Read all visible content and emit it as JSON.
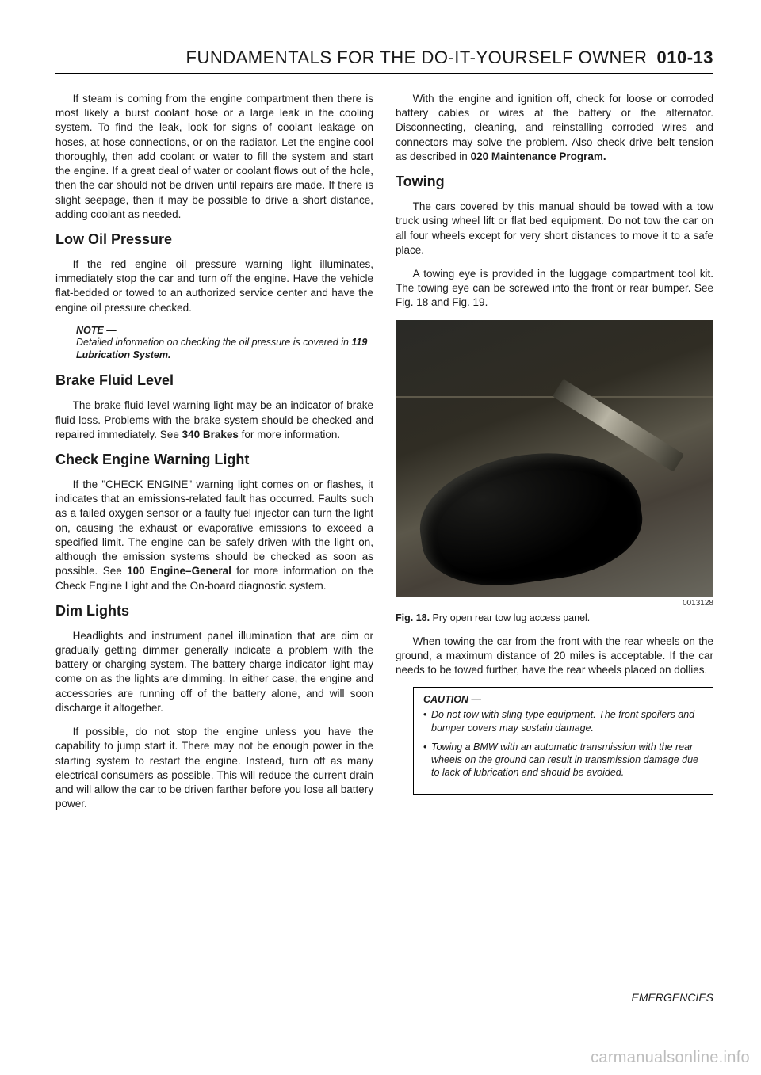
{
  "header": {
    "title_part1": "FUNDAMENTALS FOR THE ",
    "title_part2": "DO-IT-YOURSELF OWNER",
    "pageno": "010-13"
  },
  "left": {
    "p1": "If steam is coming from the engine compartment then there is most likely a burst coolant hose or a large leak in the cooling system. To find the leak, look for signs of coolant leakage on hoses, at hose connections, or on the radiator. Let the engine cool thoroughly, then add coolant or water to fill the system and start the engine. If a great deal of water or coolant flows out of the hole, then the car should not be driven until repairs are made. If there is slight seepage, then it may be possible to drive a short distance, adding coolant as needed.",
    "h_low_oil": "Low Oil Pressure",
    "p2": "If the red engine oil pressure warning light illuminates, immediately stop the car and turn off the engine. Have the vehicle flat-bedded or towed to an authorized service center and have the engine oil pressure checked.",
    "note_label": "NOTE —",
    "note_body_a": "Detailed information on checking the oil pressure is covered in ",
    "note_body_b": "119 Lubrication System.",
    "h_brake": "Brake Fluid Level",
    "p3a": "The brake fluid level warning light may be an indicator of brake fluid loss. Problems with the brake system should be checked and repaired immediately. See ",
    "p3b": "340 Brakes",
    "p3c": " for more information.",
    "h_check": "Check Engine Warning Light",
    "p4a": "If the \"CHECK ENGINE\" warning light comes on or flashes, it indicates that an emissions-related fault has occurred. Faults such as a failed oxygen sensor or a faulty fuel injector can turn the light on, causing the exhaust or evaporative emissions to exceed a specified limit. The engine can be safely driven with the light on, although the emission systems should be checked as soon as possible. See ",
    "p4b": "100 Engine–General",
    "p4c": " for more information on the Check Engine Light and the On-board diagnostic system.",
    "h_dim": "Dim Lights",
    "p5": "Headlights and instrument panel illumination that are dim or gradually getting dimmer generally indicate a problem with the battery or charging system. The battery charge indicator light may come on as the lights are dimming. In either case, the engine and accessories are running off of the battery alone, and will soon discharge it altogether.",
    "p6": "If possible, do not stop the engine unless you have the capability to jump start it. There may not be enough power in the starting system to restart the engine. Instead, turn off as many electrical consumers as possible. This will reduce the current drain and will allow the car to be driven farther before you lose all battery power."
  },
  "right": {
    "p1a": "With the engine and ignition off, check for loose or corroded battery cables or wires at the battery or the alternator. Disconnecting, cleaning, and reinstalling corroded wires and connectors may solve the problem. Also check drive belt tension as described in ",
    "p1b": "020 Maintenance Program.",
    "h_towing": "Towing",
    "p2": "The cars covered by this manual should be towed with a tow truck using wheel lift or flat bed equipment. Do not tow the car on all four wheels except for very short distances to move it to a safe place.",
    "p3": "A towing eye is provided in the luggage compartment tool kit. The towing eye can be screwed into the front or rear bumper. See Fig. 18 and Fig. 19.",
    "fig_code": "0013128",
    "fig_num": "Fig. 18.",
    "fig_caption": " Pry open rear tow lug access panel.",
    "p4": "When towing the car from the front with the rear wheels on the ground, a maximum distance of 20 miles is acceptable. If the car needs to be towed further, have the rear wheels placed on dollies.",
    "caution_label": "CAUTION —",
    "caution1": "Do not tow with sling-type equipment. The front spoilers and bumper covers may sustain damage.",
    "caution2": "Towing a BMW with an automatic transmission with the rear wheels on the ground can result in transmission damage due to lack of lubrication and should be avoided."
  },
  "footer": "EMERGENCIES",
  "watermark": "carmanualsonline.info"
}
